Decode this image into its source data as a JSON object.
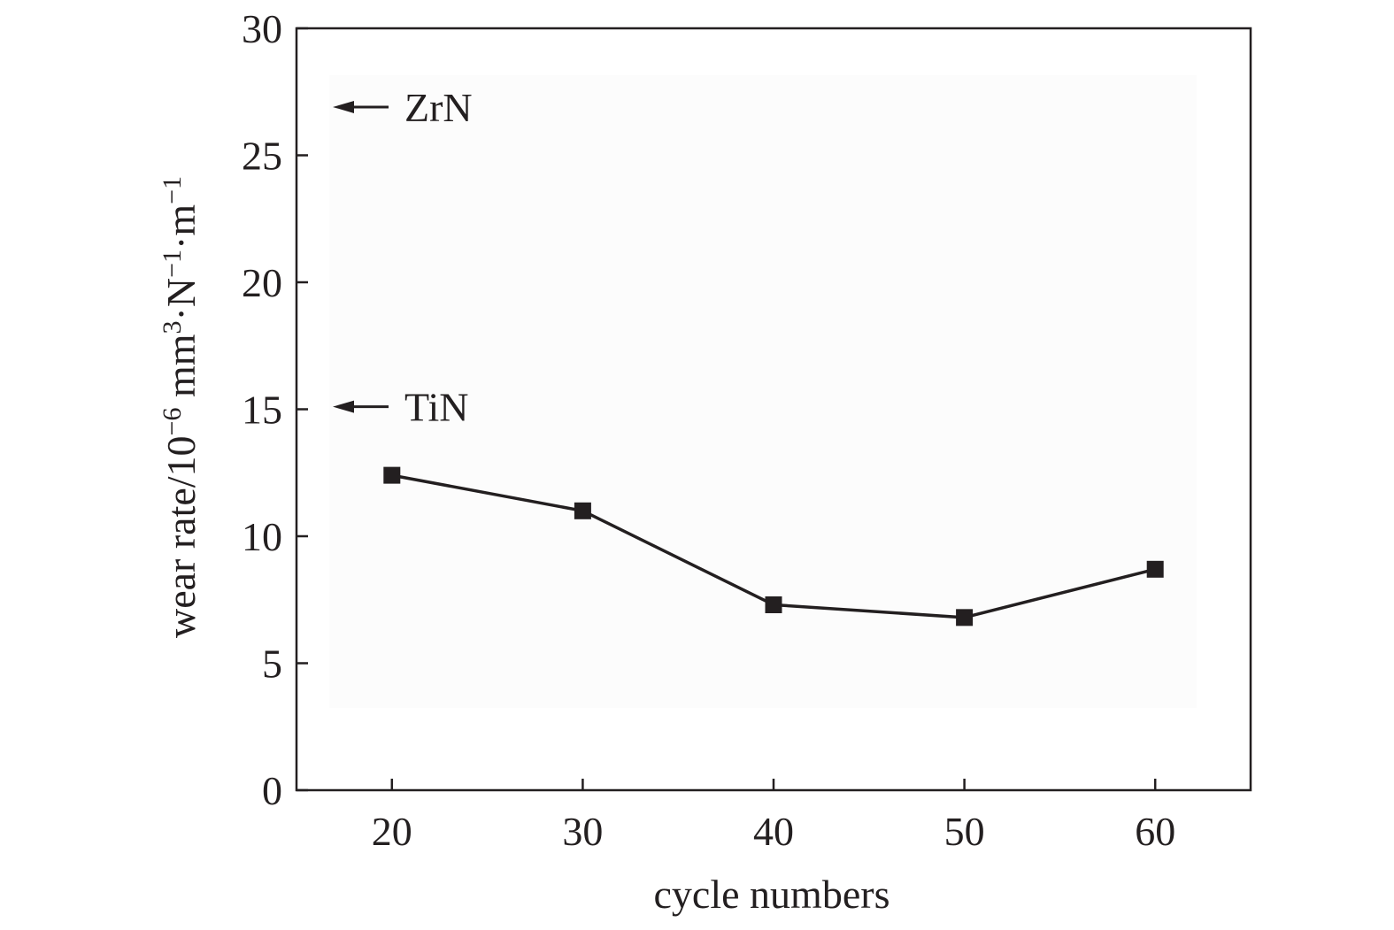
{
  "chart_data": {
    "type": "line",
    "title": "",
    "xlabel": "cycle numbers",
    "ylabel": {
      "prefix": "wear rate/10",
      "exp1": "−6",
      "mid1": " mm",
      "exp2": "3",
      "mid2": "·N",
      "exp3": "−1",
      "mid3": "·m",
      "exp4": "−1"
    },
    "xlim": [
      15,
      65
    ],
    "ylim": [
      0,
      30
    ],
    "xticks": [
      20,
      30,
      40,
      50,
      60
    ],
    "xtick_labels": [
      "20",
      "30",
      "40",
      "50",
      "60"
    ],
    "yticks": [
      0,
      5,
      10,
      15,
      20,
      25,
      30
    ],
    "ytick_labels": [
      "0",
      "5",
      "10",
      "15",
      "20",
      "25",
      "30"
    ],
    "grid": false,
    "series": [
      {
        "x": [
          20,
          30,
          40,
          50,
          60
        ],
        "y": [
          12.4,
          11.0,
          7.3,
          6.8,
          8.7
        ],
        "marker": "square",
        "color": "#231f20"
      }
    ],
    "annotations": [
      {
        "label": "ZrN",
        "y": 26.9,
        "style": "arrow-left"
      },
      {
        "label": "TiN",
        "y": 15.1,
        "style": "arrow-left"
      }
    ]
  }
}
